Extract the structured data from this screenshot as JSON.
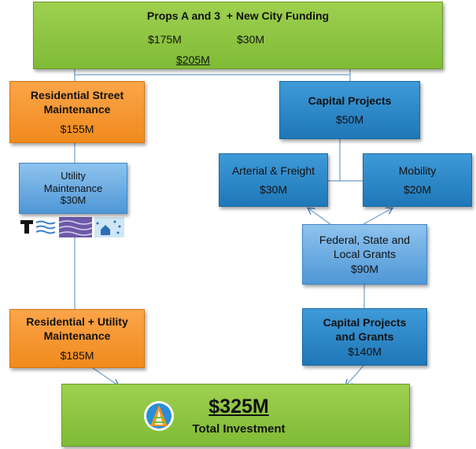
{
  "top": {
    "title": "Props A and 3  + New City Funding",
    "left_amount": "$175M",
    "right_amount": "$30M",
    "total": "$205M"
  },
  "nodes": [
    {
      "label": "Residential Street Maintenance",
      "amount": "$155M"
    },
    {
      "label": "Capital Projects",
      "amount": "$50M"
    },
    {
      "label": "Utility Maintenance",
      "amount": "$30M"
    },
    {
      "label": "Arterial & Freight",
      "amount": "$30M"
    },
    {
      "label": "Mobility",
      "amount": "$20M"
    },
    {
      "label": "Federal, State and Local Grants",
      "amount": "$90M"
    },
    {
      "label": "Residential + Utility Maintenance",
      "amount": "$185M"
    },
    {
      "label": "Capital Projects and Grants",
      "amount": "$140M"
    }
  ],
  "bottom": {
    "amount": "$325M",
    "label": "Total Investment"
  }
}
